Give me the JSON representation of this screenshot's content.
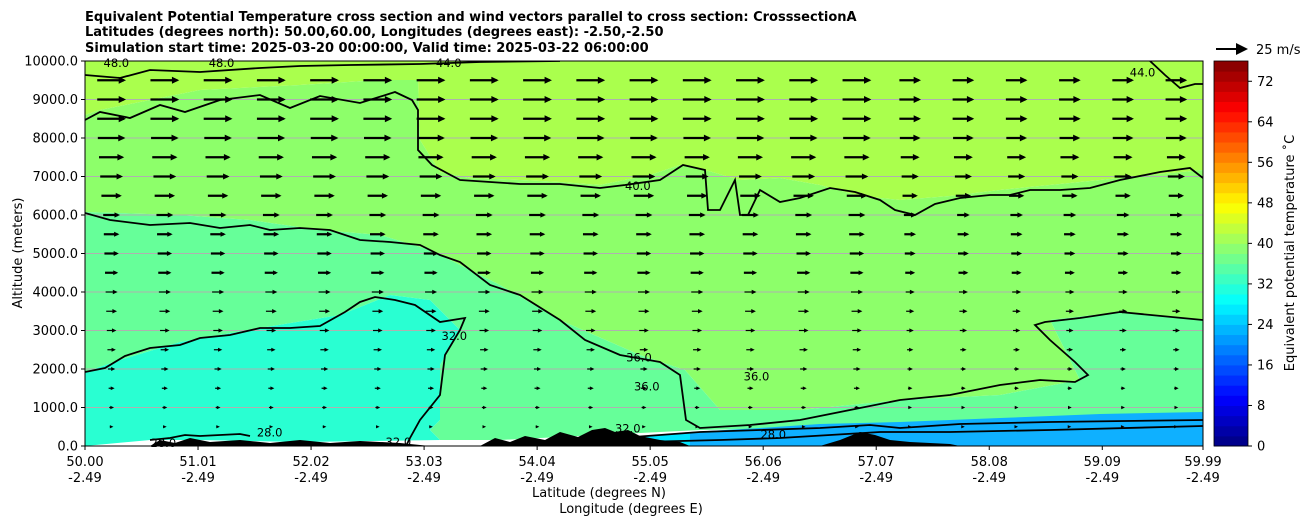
{
  "chart_data": {
    "type": "heatmap",
    "title_lines": [
      "Equivalent Potential Temperature cross section and wind vectors parallel to cross section: CrosssectionA",
      "Latitudes (degrees north): 50.00,60.00, Longitudes (degrees east): -2.50,-2.50",
      "Simulation start time: 2025-03-20 00:00:00, Valid time: 2025-03-22 06:00:00"
    ],
    "ylabel": "Altitude (meters)",
    "xlabel_lines": [
      "Latitude (degrees N)",
      "Longitude (degrees E)"
    ],
    "x_ticks": [
      {
        "lat": "50.00",
        "lon": "-2.49",
        "value": 50.0
      },
      {
        "lat": "51.01",
        "lon": "-2.49",
        "value": 51.01
      },
      {
        "lat": "52.02",
        "lon": "-2.49",
        "value": 52.02
      },
      {
        "lat": "53.03",
        "lon": "-2.49",
        "value": 53.03
      },
      {
        "lat": "54.04",
        "lon": "-2.49",
        "value": 54.04
      },
      {
        "lat": "55.05",
        "lon": "-2.49",
        "value": 55.05
      },
      {
        "lat": "56.06",
        "lon": "-2.49",
        "value": 56.06
      },
      {
        "lat": "57.07",
        "lon": "-2.49",
        "value": 57.07
      },
      {
        "lat": "58.08",
        "lon": "-2.49",
        "value": 58.08
      },
      {
        "lat": "59.09",
        "lon": "-2.49",
        "value": 59.09
      },
      {
        "lat": "59.99",
        "lon": "-2.49",
        "value": 59.99
      }
    ],
    "y_ticks": [
      "0.0",
      "1000.0",
      "2000.0",
      "3000.0",
      "4000.0",
      "5000.0",
      "6000.0",
      "7000.0",
      "8000.0",
      "9000.0",
      "10000.0"
    ],
    "xlim": [
      50.0,
      59.99
    ],
    "ylim": [
      0,
      10000
    ],
    "grid": "horizontal",
    "colorbar": {
      "label": "Equivalent potential temperature ˚C",
      "ticks": [
        "0",
        "8",
        "16",
        "24",
        "32",
        "40",
        "48",
        "56",
        "64",
        "72"
      ],
      "range": [
        0,
        76
      ],
      "colormap": "jet",
      "stops": [
        "#00007f",
        "#0000ff",
        "#007fff",
        "#00ffff",
        "#7fff7f",
        "#ffff00",
        "#ff7f00",
        "#ff0000",
        "#7f0000"
      ]
    },
    "quiver_key": {
      "label": "25 m/s",
      "speed": 25
    },
    "contour_labels": [
      {
        "text": "48.0",
        "x": 50.28,
        "y": 9900
      },
      {
        "text": "48.0",
        "x": 51.22,
        "y": 9900
      },
      {
        "text": "44.0",
        "x": 53.25,
        "y": 9900
      },
      {
        "text": "44.0",
        "x": 59.45,
        "y": 9650
      },
      {
        "text": "40.0",
        "x": 54.94,
        "y": 6700
      },
      {
        "text": "32.0",
        "x": 53.3,
        "y": 2800
      },
      {
        "text": "36.0",
        "x": 54.95,
        "y": 2250
      },
      {
        "text": "36.0",
        "x": 55.02,
        "y": 1500
      },
      {
        "text": "36.0",
        "x": 56.0,
        "y": 1750
      },
      {
        "text": "28.0",
        "x": 50.7,
        "y": 30
      },
      {
        "text": "28.0",
        "x": 51.65,
        "y": 300
      },
      {
        "text": "32.0",
        "x": 52.8,
        "y": 50
      },
      {
        "text": "32.0",
        "x": 54.85,
        "y": 400
      },
      {
        "text": "28.0",
        "x": 56.15,
        "y": 250
      }
    ],
    "color_regions": [
      {
        "name": "upper-yellow-green",
        "theta_e": 43.5
      },
      {
        "name": "mid-green",
        "theta_e": 39
      },
      {
        "name": "lower-green",
        "theta_e": 37
      },
      {
        "name": "cyan-region",
        "theta_e": 33
      },
      {
        "name": "surface-blue",
        "theta_e": 27
      }
    ],
    "wind_speed_by_altitude": [
      {
        "altitude": 500,
        "speed": 3
      },
      {
        "altitude": 1000,
        "speed": 4
      },
      {
        "altitude": 1500,
        "speed": 5
      },
      {
        "altitude": 2000,
        "speed": 6
      },
      {
        "altitude": 2500,
        "speed": 7
      },
      {
        "altitude": 3000,
        "speed": 8
      },
      {
        "altitude": 3500,
        "speed": 9
      },
      {
        "altitude": 4000,
        "speed": 10
      },
      {
        "altitude": 4500,
        "speed": 11
      },
      {
        "altitude": 5000,
        "speed": 12
      },
      {
        "altitude": 5500,
        "speed": 13
      },
      {
        "altitude": 6000,
        "speed": 14
      },
      {
        "altitude": 6500,
        "speed": 17
      },
      {
        "altitude": 7000,
        "speed": 19
      },
      {
        "altitude": 7500,
        "speed": 21
      },
      {
        "altitude": 8000,
        "speed": 23
      },
      {
        "altitude": 8500,
        "speed": 24
      },
      {
        "altitude": 9000,
        "speed": 24
      },
      {
        "altitude": 9500,
        "speed": 24
      }
    ]
  }
}
